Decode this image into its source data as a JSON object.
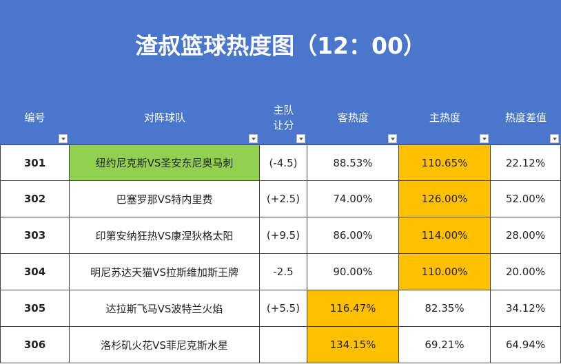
{
  "header": {
    "title": "渣叔篮球热度图（12：00）"
  },
  "table": {
    "columns": [
      "编号",
      "对阵球队",
      "主队\n让分",
      "客热度",
      "主热度",
      "热度差值"
    ],
    "rows": [
      [
        "301",
        "纽约尼克斯VS圣安东尼奥马刺",
        "(-4.5)",
        "88.53%",
        "110.65%",
        "22.12%"
      ],
      [
        "302",
        "巴塞罗那VS特内里费",
        "(+2.5)",
        "74.00%",
        "126.00%",
        "52.00%"
      ],
      [
        "303",
        "印第安纳狂热VS康涅狄格太阳",
        "(+9.5)",
        "86.00%",
        "114.00%",
        "28.00%"
      ],
      [
        "304",
        "明尼苏达天猫VS拉斯维加斯王牌",
        "-2.5",
        "90.00%",
        "110.00%",
        "20.00%"
      ],
      [
        "305",
        "达拉斯飞马VS波特兰火焰",
        "(+5.5)",
        "116.47%",
        "82.35%",
        "34.12%"
      ],
      [
        "306",
        "洛杉矶火花VS菲尼克斯水星",
        null,
        "134.15%",
        "69.21%",
        "64.94%"
      ]
    ],
    "highlights": [
      {
        "row": 0,
        "col": 1,
        "color": "#92d050"
      },
      {
        "row": 0,
        "col": 4,
        "color": "#ffc000"
      },
      {
        "row": 1,
        "col": 4,
        "color": "#ffc000"
      },
      {
        "row": 2,
        "col": 4,
        "color": "#ffc000"
      },
      {
        "row": 3,
        "col": 4,
        "color": "#ffc000"
      },
      {
        "row": 4,
        "col": 3,
        "color": "#ffc000"
      },
      {
        "row": 5,
        "col": 3,
        "color": "#ffc000"
      }
    ]
  }
}
